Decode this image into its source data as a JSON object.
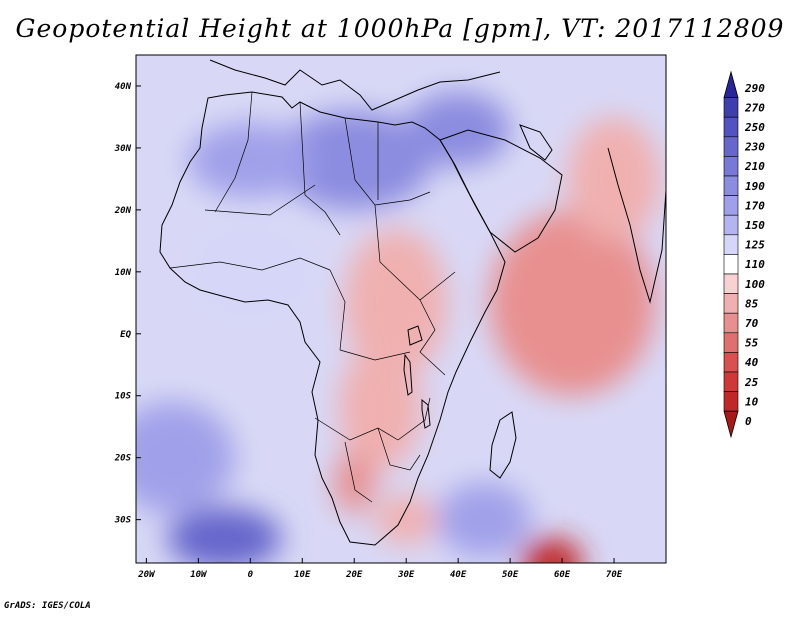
{
  "chart_data": {
    "type": "heatmap",
    "title": "Geopotential Height at 1000hPa [gpm], VT: 2017112809",
    "variable": "Geopotential Height at 1000hPa",
    "units": "gpm",
    "valid_time": "2017112809",
    "lon_range": [
      -22,
      80
    ],
    "lat_range": [
      -37,
      45
    ],
    "x_ticks": [
      {
        "value": -20,
        "label": "20W"
      },
      {
        "value": -10,
        "label": "10W"
      },
      {
        "value": 0,
        "label": "0"
      },
      {
        "value": 10,
        "label": "10E"
      },
      {
        "value": 20,
        "label": "20E"
      },
      {
        "value": 30,
        "label": "30E"
      },
      {
        "value": 40,
        "label": "40E"
      },
      {
        "value": 50,
        "label": "50E"
      },
      {
        "value": 60,
        "label": "60E"
      },
      {
        "value": 70,
        "label": "70E"
      }
    ],
    "y_ticks": [
      {
        "value": 40,
        "label": "40N"
      },
      {
        "value": 30,
        "label": "30N"
      },
      {
        "value": 20,
        "label": "20N"
      },
      {
        "value": 10,
        "label": "10N"
      },
      {
        "value": 0,
        "label": "EQ"
      },
      {
        "value": -10,
        "label": "10S"
      },
      {
        "value": -20,
        "label": "20S"
      },
      {
        "value": -30,
        "label": "30S"
      }
    ],
    "colorbar": {
      "labels": [
        "290",
        "270",
        "250",
        "230",
        "210",
        "190",
        "170",
        "150",
        "125",
        "110",
        "100",
        "85",
        "70",
        "55",
        "40",
        "25",
        "10",
        "0"
      ],
      "colors": [
        "#2a249b",
        "#3e3eae",
        "#5252c0",
        "#6666cc",
        "#7878d6",
        "#8c8ce0",
        "#a0a0ea",
        "#b4b4f0",
        "#d6d6f8",
        "#ffffff",
        "#f8d2d2",
        "#f0b0b0",
        "#e89090",
        "#e07070",
        "#d85050",
        "#d03838",
        "#c02828",
        "#a81818"
      ]
    },
    "fields": [
      {
        "lon": 20,
        "lat": 28,
        "value": 190,
        "rx": 15,
        "ry": 8
      },
      {
        "lon": 40,
        "lat": 33,
        "value": 190,
        "rx": 10,
        "ry": 6
      },
      {
        "lon": 0,
        "lat": 28,
        "value": 175,
        "rx": 12,
        "ry": 6
      },
      {
        "lon": -5,
        "lat": -33,
        "value": 235,
        "rx": 11,
        "ry": 5
      },
      {
        "lon": -15,
        "lat": -20,
        "value": 185,
        "rx": 12,
        "ry": 9
      },
      {
        "lon": 45,
        "lat": -30,
        "value": 170,
        "rx": 9,
        "ry": 6
      },
      {
        "lon": 0,
        "lat": 10,
        "value": 140,
        "rx": 12,
        "ry": 8
      },
      {
        "lon": 28,
        "lat": 5,
        "value": 95,
        "rx": 10,
        "ry": 12
      },
      {
        "lon": 25,
        "lat": -12,
        "value": 90,
        "rx": 8,
        "ry": 10
      },
      {
        "lon": 62,
        "lat": 5,
        "value": 75,
        "rx": 16,
        "ry": 15
      },
      {
        "lon": 70,
        "lat": 25,
        "value": 95,
        "rx": 9,
        "ry": 10
      },
      {
        "lon": 20,
        "lat": -24,
        "value": 70,
        "rx": 4,
        "ry": 5
      },
      {
        "lon": 58,
        "lat": -37,
        "value": 15,
        "rx": 6,
        "ry": 4
      },
      {
        "lon": 30,
        "lat": -30,
        "value": 95,
        "rx": 6,
        "ry": 4
      }
    ],
    "xlabel": "",
    "ylabel": ""
  },
  "footer": {
    "credit": "GrADS: IGES/COLA"
  }
}
